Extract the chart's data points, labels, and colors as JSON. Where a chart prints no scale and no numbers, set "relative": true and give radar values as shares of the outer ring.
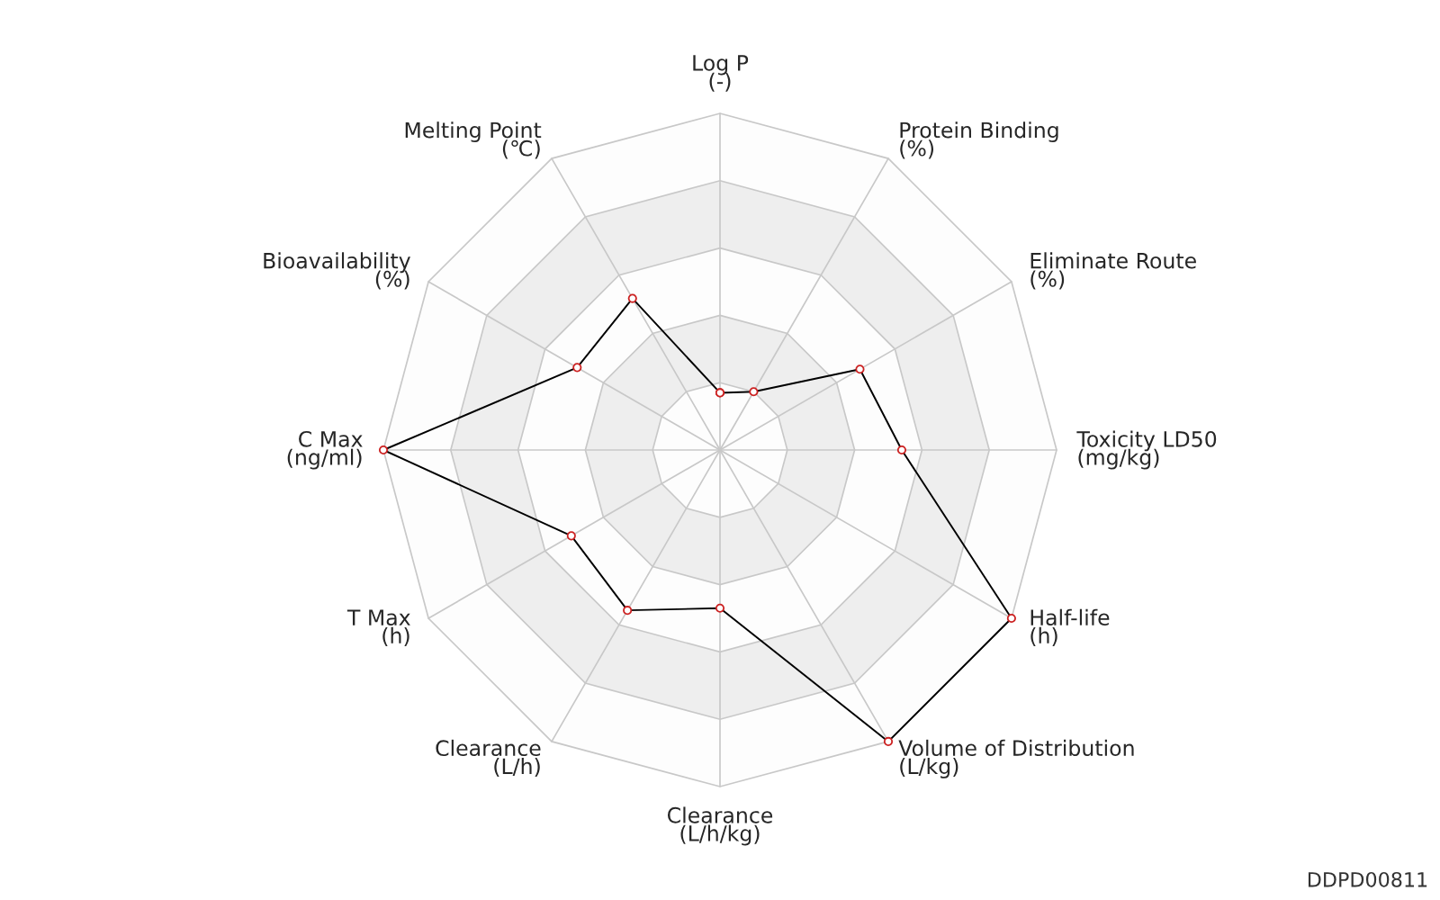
{
  "chart_data": {
    "type": "radar",
    "relative": true,
    "grid": true,
    "marker": "circle",
    "line_style": "solid",
    "categories": [
      "Log P\n(-)",
      "Protein Binding\n(%)",
      "Eliminate Route\n(%)",
      "Toxicity LD50\n(mg/kg)",
      "Half-life\n(h)",
      "Volume of Distribution\n(L/kg)",
      "Clearance\n(L/h/kg)",
      "Clearance\n(L/h)",
      "T Max\n(h)",
      "C Max\n(ng/ml)",
      "Bioavailability\n(%)",
      "Melting Point\n(℃)"
    ],
    "series": [
      {
        "color": "#000000",
        "values": [
          0.17,
          0.2,
          0.48,
          0.54,
          1.0,
          1.0,
          0.47,
          0.55,
          0.51,
          1.0,
          0.49,
          0.52
        ]
      }
    ],
    "annotations": [
      "DDPD00811"
    ]
  }
}
